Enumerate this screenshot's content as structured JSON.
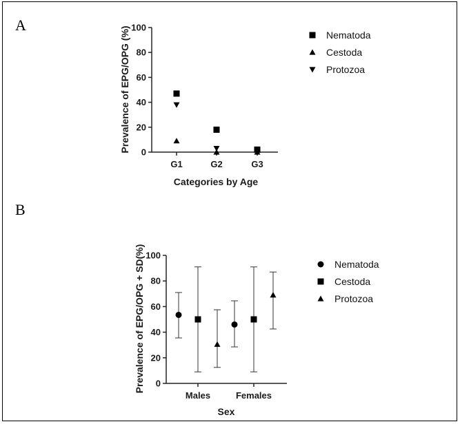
{
  "panels": {
    "a_letter": "A",
    "b_letter": "B"
  },
  "chart_data": [
    {
      "type": "scatter",
      "title": "",
      "xlabel": "Categories by Age",
      "ylabel": "Prevalence of EPG/OPG (%)",
      "categories": [
        "G1",
        "G2",
        "G3"
      ],
      "ylim": [
        0,
        100
      ],
      "yticks": [
        0,
        20,
        40,
        60,
        80,
        100
      ],
      "legend_position": "right",
      "series": [
        {
          "name": "Nematoda",
          "marker": "square",
          "values": [
            47,
            18,
            2
          ]
        },
        {
          "name": "Cestoda",
          "marker": "triangle-up",
          "values": [
            9,
            0,
            0
          ]
        },
        {
          "name": "Protozoa",
          "marker": "triangle-down",
          "values": [
            38,
            3,
            1
          ]
        }
      ]
    },
    {
      "type": "scatter",
      "title": "",
      "xlabel": "Sex",
      "ylabel": "Prevalence of EPG/OPG + SD(%)",
      "categories": [
        "Males",
        "Females"
      ],
      "ylim": [
        0,
        100
      ],
      "yticks": [
        0,
        20,
        40,
        60,
        80,
        100
      ],
      "legend_position": "right",
      "series": [
        {
          "name": "Nematoda",
          "marker": "circle",
          "values": [
            53.5,
            46
          ],
          "lower": [
            35.5,
            28.5
          ],
          "upper": [
            71,
            64.5
          ]
        },
        {
          "name": "Cestoda",
          "marker": "square",
          "values": [
            50,
            50
          ],
          "lower": [
            9,
            9
          ],
          "upper": [
            91,
            91
          ]
        },
        {
          "name": "Protozoa",
          "marker": "triangle-up",
          "values": [
            30.5,
            69
          ],
          "lower": [
            12.5,
            42.5
          ],
          "upper": [
            57.5,
            87
          ]
        }
      ]
    }
  ]
}
